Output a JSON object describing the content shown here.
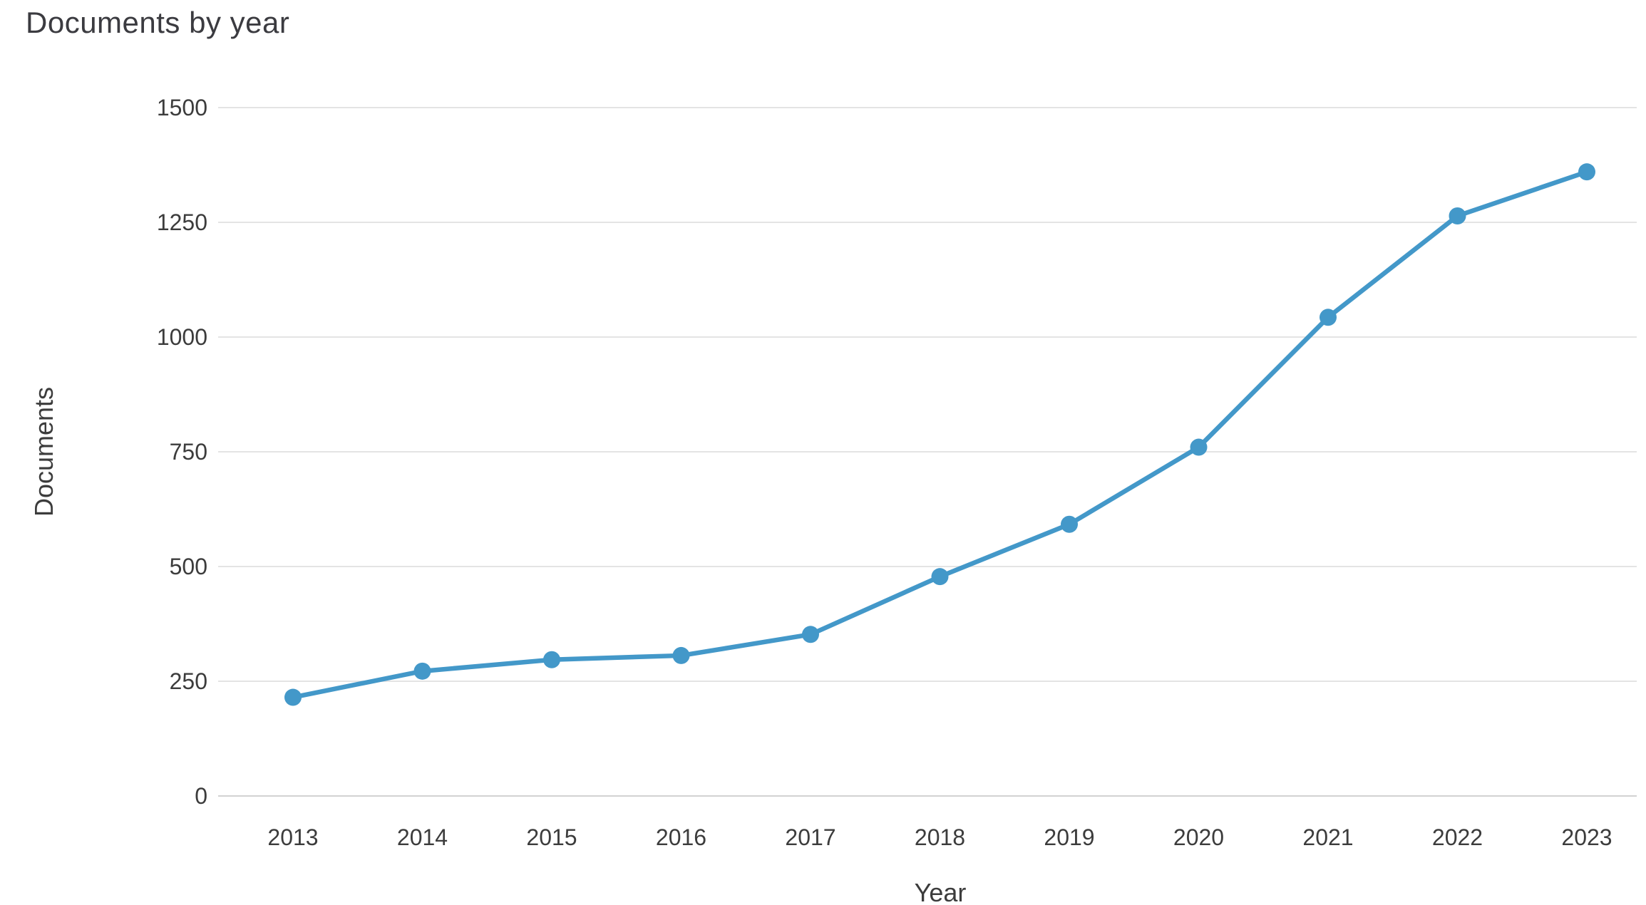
{
  "chart_data": {
    "type": "line",
    "title": "Documents by year",
    "xlabel": "Year",
    "ylabel": "Documents",
    "categories": [
      "2013",
      "2014",
      "2015",
      "2016",
      "2017",
      "2018",
      "2019",
      "2020",
      "2021",
      "2022",
      "2023"
    ],
    "series": [
      {
        "name": "Documents",
        "values": [
          215,
          272,
          297,
          306,
          352,
          478,
          592,
          760,
          1043,
          1264,
          1360
        ]
      }
    ],
    "ylim": [
      0,
      1500
    ],
    "ytick_step": 250,
    "yticks": [
      0,
      250,
      500,
      750,
      1000,
      1250,
      1500
    ],
    "grid": "horizontal",
    "legend": "none",
    "line_color": "#4398c9",
    "marker": "circle"
  }
}
